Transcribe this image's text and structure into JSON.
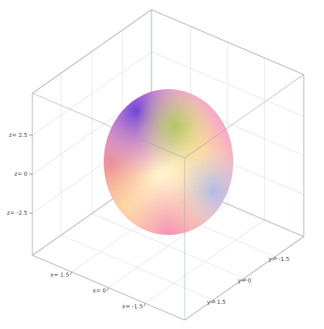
{
  "chart_data": {
    "type": "surface3d",
    "xlim": [
      -3.1,
      3.1
    ],
    "ylim": [
      -2.9,
      2.9
    ],
    "zlim": [
      -5.2,
      5.2
    ],
    "xticks": [
      {
        "value": 1.5,
        "label": "x= 1.5"
      },
      {
        "value": 0,
        "label": "x= 0"
      },
      {
        "value": -1.5,
        "label": "x= -1.5"
      }
    ],
    "yticks": [
      {
        "value": -1.5,
        "label": "y= -1.5"
      },
      {
        "value": 0,
        "label": "y= 0"
      },
      {
        "value": 1.5,
        "label": "y= 1.5"
      }
    ],
    "zticks": [
      {
        "value": 2.5,
        "label": "z= 2.5"
      },
      {
        "value": 0,
        "label": "z= 0"
      },
      {
        "value": -2.5,
        "label": "z= -2.5"
      }
    ],
    "grid": true
  }
}
